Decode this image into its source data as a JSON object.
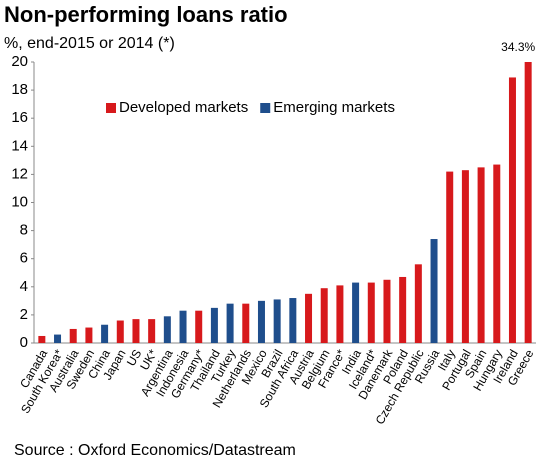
{
  "chart_data": {
    "type": "bar",
    "title": "Non-performing loans ratio",
    "subtitle": "%, end-2015 or 2014 (*)",
    "source": "Source : Oxford Economics/Datastream",
    "categories": [
      "Canada",
      "South Korea*",
      "Australia",
      "Sweden",
      "China",
      "Japan",
      "US",
      "UK*",
      "Argentina",
      "Indonesia",
      "Germany*",
      "Thailand",
      "Turkey",
      "Netherlands",
      "Mexico",
      "Brazil",
      "South Africa",
      "Austria",
      "Belgium",
      "France*",
      "India",
      "Iceland*",
      "Danemark",
      "Poland",
      "Czech Republic",
      "Russia",
      "Italy",
      "Portugal",
      "Spain",
      "Hungary",
      "Ireland",
      "Greece"
    ],
    "series": [
      {
        "name": "Developed markets",
        "color": "#d7191c",
        "values": [
          0.5,
          null,
          1.0,
          1.1,
          null,
          1.6,
          1.7,
          1.7,
          null,
          null,
          2.3,
          null,
          null,
          2.8,
          null,
          null,
          null,
          3.5,
          3.9,
          4.1,
          null,
          4.3,
          4.5,
          4.7,
          5.6,
          null,
          12.2,
          12.3,
          12.5,
          12.7,
          18.9,
          34.3
        ],
        "value_labels": [
          null,
          null,
          null,
          null,
          null,
          null,
          null,
          null,
          null,
          null,
          null,
          null,
          null,
          null,
          null,
          null,
          null,
          null,
          null,
          null,
          null,
          null,
          null,
          null,
          null,
          null,
          null,
          null,
          null,
          null,
          null,
          "34.3%"
        ]
      },
      {
        "name": "Emerging markets",
        "color": "#1f4e8c",
        "values": [
          null,
          0.6,
          null,
          null,
          1.3,
          null,
          null,
          null,
          1.9,
          2.3,
          null,
          2.5,
          2.8,
          null,
          3.0,
          3.1,
          3.2,
          null,
          null,
          null,
          4.3,
          null,
          null,
          null,
          null,
          7.4,
          null,
          null,
          null,
          null,
          null,
          null
        ]
      }
    ],
    "ylim": [
      0,
      20
    ],
    "yticks": [
      0,
      2,
      4,
      6,
      8,
      10,
      12,
      14,
      16,
      18,
      20
    ],
    "legend": "upper left"
  }
}
